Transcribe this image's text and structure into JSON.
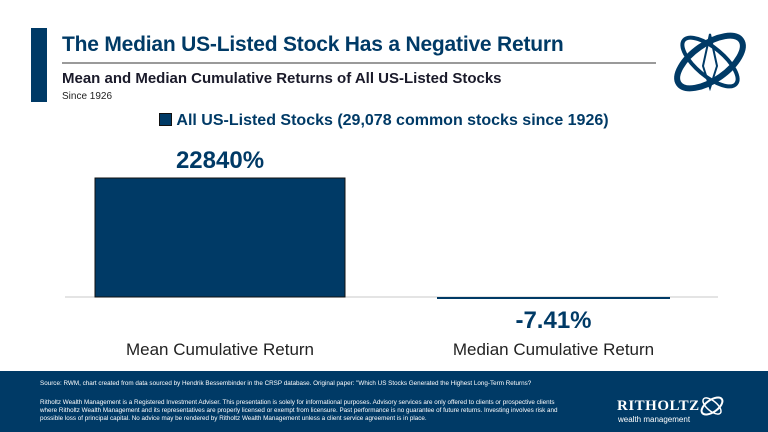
{
  "header": {
    "title": "The Median US-Listed Stock Has a Negative Return"
  },
  "chart_data": {
    "type": "bar",
    "title": "Mean and Median Cumulative Returns of All US-Listed Stocks",
    "subtitle": "Since 1926",
    "categories": [
      "Mean Cumulative Return",
      "Median Cumulative Return"
    ],
    "series": [
      {
        "name": "All US-Listed Stocks (29,078 common stocks since 1926)",
        "values": [
          22840,
          -7.41
        ],
        "color": "#003a66"
      }
    ],
    "data_labels": [
      "22840%",
      "-7.41%"
    ],
    "legend": "top-center",
    "grid": false
  },
  "footer": {
    "source": "Source: RWM, chart created from data sourced by Hendrik Bessembinder in the  CRSP database. Original paper:  \"Which US Stocks Generated the Highest Long-Term Returns?",
    "disclaimer": "Ritholtz Wealth Management is a Registered Investment Adviser. This presentation is solely for informational purposes. Advisory services are only offered to clients or prospective clients where Ritholtz Wealth Management and its representatives are properly licensed or exempt from licensure. Past performance is no guarantee of future returns. Investing involves risk and possible loss of principal capital. No advice may be rendered by Ritholtz Wealth Management unless a client service agreement is in place.",
    "brand": "RITHOLTZ",
    "brand_sub": "wealth management"
  }
}
